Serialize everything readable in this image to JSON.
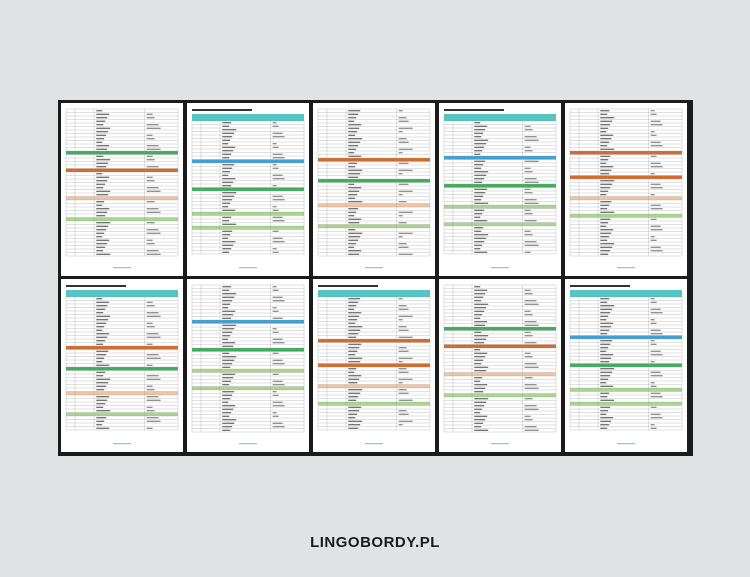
{
  "footer": {
    "brand": "LINGOBORDY.PL"
  }
}
